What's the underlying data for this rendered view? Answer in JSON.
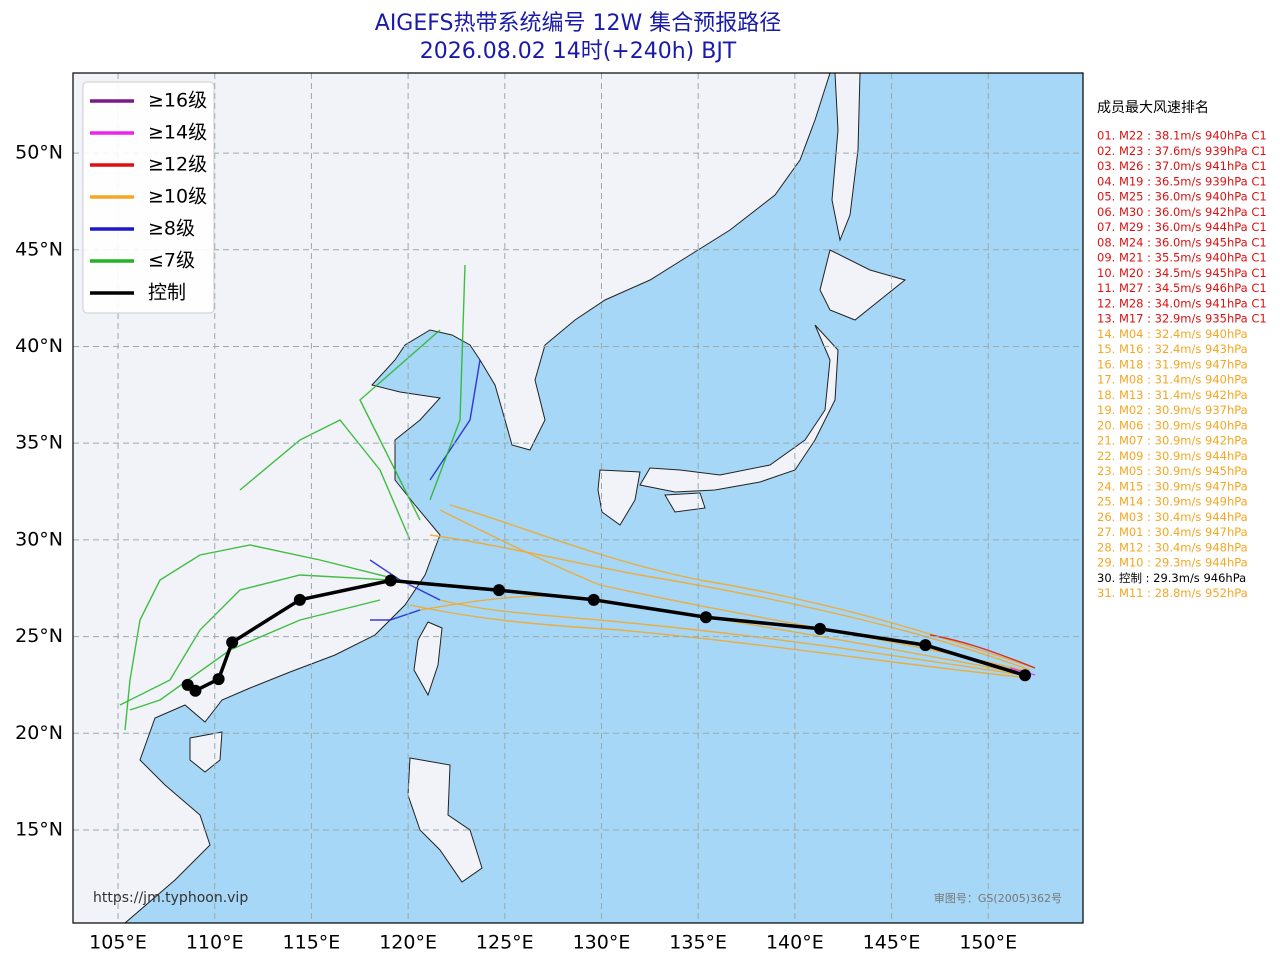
{
  "title": "AIGEFS热带系统编号 12W 集合预报路径",
  "subtitle": "2026.08.02 14时(+240h) BJT",
  "map": {
    "xlim": [
      102.67,
      154.9
    ],
    "ylim": [
      10.19,
      54.14
    ],
    "xticks": [
      {
        "value": 105,
        "label": "105°E"
      },
      {
        "value": 110,
        "label": "110°E"
      },
      {
        "value": 115,
        "label": "115°E"
      },
      {
        "value": 120,
        "label": "120°E"
      },
      {
        "value": 125,
        "label": "125°E"
      },
      {
        "value": 130,
        "label": "130°E"
      },
      {
        "value": 135,
        "label": "135°E"
      },
      {
        "value": 140,
        "label": "140°E"
      },
      {
        "value": 145,
        "label": "145°E"
      },
      {
        "value": 150,
        "label": "150°E"
      }
    ],
    "yticks": [
      {
        "value": 15,
        "label": "15°N"
      },
      {
        "value": 20,
        "label": "20°N"
      },
      {
        "value": 25,
        "label": "25°N"
      },
      {
        "value": 30,
        "label": "30°N"
      },
      {
        "value": 35,
        "label": "35°N"
      },
      {
        "value": 40,
        "label": "40°N"
      },
      {
        "value": 45,
        "label": "45°N"
      },
      {
        "value": 50,
        "label": "50°N"
      }
    ],
    "grid": true,
    "control_track": {
      "name": "控制",
      "color": "#000000",
      "lon": [
        151.9,
        146.75,
        141.3,
        135.4,
        129.6,
        124.7,
        119.1,
        114.4,
        110.9,
        110.2,
        109.0,
        108.6
      ],
      "lat": [
        23.0,
        24.56,
        25.4,
        26.0,
        26.9,
        27.4,
        27.9,
        26.9,
        24.7,
        22.8,
        22.2,
        22.5
      ]
    }
  },
  "legend": {
    "corner": "upper left",
    "items": [
      {
        "label": "≥16级",
        "color": "#7a1a8a"
      },
      {
        "label": "≥14级",
        "color": "#ee22ee"
      },
      {
        "label": "≥12级",
        "color": "#dd1111"
      },
      {
        "label": "≥10级",
        "color": "#f5a623"
      },
      {
        "label": "≥8级",
        "color": "#1a1acc"
      },
      {
        "label": "≤7级",
        "color": "#22b422"
      },
      {
        "label": "控制",
        "color": "#000000"
      }
    ]
  },
  "ranking": {
    "title": "成员最大风速排名",
    "entries": [
      {
        "text": "01. M22 : 38.1m/s 940hPa C1",
        "color": "#dd1111"
      },
      {
        "text": "02. M23 : 37.6m/s 939hPa C1",
        "color": "#dd1111"
      },
      {
        "text": "03. M26 : 37.0m/s 941hPa C1",
        "color": "#dd1111"
      },
      {
        "text": "04. M19 : 36.5m/s 939hPa C1",
        "color": "#dd1111"
      },
      {
        "text": "05. M25 : 36.0m/s 940hPa C1",
        "color": "#dd1111"
      },
      {
        "text": "06. M30 : 36.0m/s 942hPa C1",
        "color": "#dd1111"
      },
      {
        "text": "07. M29 : 36.0m/s 944hPa C1",
        "color": "#dd1111"
      },
      {
        "text": "08. M24 : 36.0m/s 945hPa C1",
        "color": "#dd1111"
      },
      {
        "text": "09. M21 : 35.5m/s 940hPa C1",
        "color": "#dd1111"
      },
      {
        "text": "10. M20 : 34.5m/s 945hPa C1",
        "color": "#dd1111"
      },
      {
        "text": "11. M27 : 34.5m/s 946hPa C1",
        "color": "#dd1111"
      },
      {
        "text": "12. M28 : 34.0m/s 941hPa C1",
        "color": "#dd1111"
      },
      {
        "text": "13. M17 : 32.9m/s 935hPa C1",
        "color": "#dd1111"
      },
      {
        "text": "14. M04 : 32.4m/s 940hPa",
        "color": "#f5a623"
      },
      {
        "text": "15. M16 : 32.4m/s 943hPa",
        "color": "#f5a623"
      },
      {
        "text": "16. M18 : 31.9m/s 947hPa",
        "color": "#f5a623"
      },
      {
        "text": "17. M08 : 31.4m/s 940hPa",
        "color": "#f5a623"
      },
      {
        "text": "18. M13 : 31.4m/s 942hPa",
        "color": "#f5a623"
      },
      {
        "text": "19. M02 : 30.9m/s 937hPa",
        "color": "#f5a623"
      },
      {
        "text": "20. M06 : 30.9m/s 940hPa",
        "color": "#f5a623"
      },
      {
        "text": "21. M07 : 30.9m/s 942hPa",
        "color": "#f5a623"
      },
      {
        "text": "22. M09 : 30.9m/s 944hPa",
        "color": "#f5a623"
      },
      {
        "text": "23. M05 : 30.9m/s 945hPa",
        "color": "#f5a623"
      },
      {
        "text": "24. M15 : 30.9m/s 947hPa",
        "color": "#f5a623"
      },
      {
        "text": "25. M14 : 30.9m/s 949hPa",
        "color": "#f5a623"
      },
      {
        "text": "26. M03 : 30.4m/s 944hPa",
        "color": "#f5a623"
      },
      {
        "text": "27. M01 : 30.4m/s 947hPa",
        "color": "#f5a623"
      },
      {
        "text": "28. M12 : 30.4m/s 948hPa",
        "color": "#f5a623"
      },
      {
        "text": "29. M10 : 29.3m/s 944hPa",
        "color": "#f5a623"
      },
      {
        "text": "30. 控制 : 29.3m/s 946hPa",
        "color": "#000000"
      },
      {
        "text": "31. M11 : 28.8m/s 952hPa",
        "color": "#f5a623"
      }
    ]
  },
  "url": "https://jm.typhoon.vip",
  "approval": "审图号：GS(2005)362号"
}
